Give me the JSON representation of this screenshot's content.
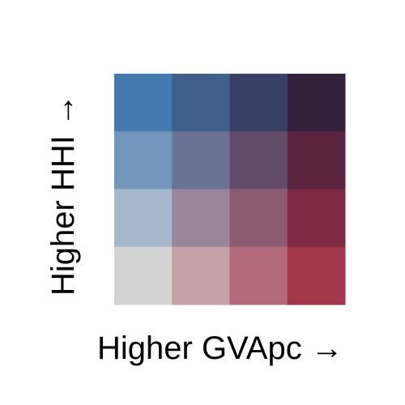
{
  "chart_data": {
    "type": "heatmap",
    "title": "",
    "xlabel": "Higher GVApc →",
    "ylabel": "Higher HHI →",
    "grid": false,
    "x_classes": [
      "1",
      "2",
      "3",
      "4"
    ],
    "y_classes": [
      "1",
      "2",
      "3",
      "4"
    ],
    "cells": [
      {
        "x": 1,
        "y": 4,
        "color": "#4279b0"
      },
      {
        "x": 2,
        "y": 4,
        "color": "#3e5e8c"
      },
      {
        "x": 3,
        "y": 4,
        "color": "#384066"
      },
      {
        "x": 4,
        "y": 4,
        "color": "#33213c"
      },
      {
        "x": 1,
        "y": 3,
        "color": "#7397bc"
      },
      {
        "x": 2,
        "y": 3,
        "color": "#6b7293"
      },
      {
        "x": 3,
        "y": 3,
        "color": "#634c6a"
      },
      {
        "x": 4,
        "y": 3,
        "color": "#5b243f"
      },
      {
        "x": 1,
        "y": 2,
        "color": "#a6b7cb"
      },
      {
        "x": 2,
        "y": 2,
        "color": "#99869b"
      },
      {
        "x": 3,
        "y": 2,
        "color": "#8d5b71"
      },
      {
        "x": 4,
        "y": 2,
        "color": "#7f2a44"
      },
      {
        "x": 1,
        "y": 1,
        "color": "#d3d3d3"
      },
      {
        "x": 2,
        "y": 1,
        "color": "#c5a0a5"
      },
      {
        "x": 3,
        "y": 1,
        "color": "#b36b79"
      },
      {
        "x": 4,
        "y": 1,
        "color": "#a2364a"
      }
    ]
  }
}
